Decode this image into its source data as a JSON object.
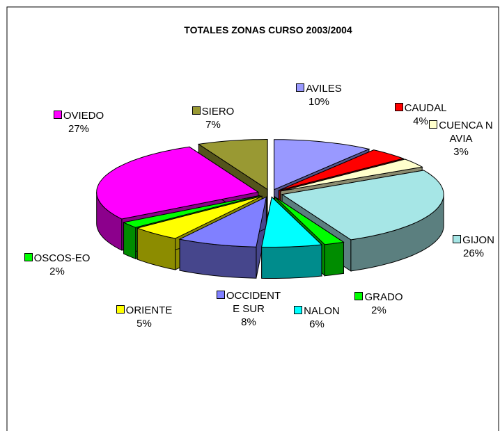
{
  "chart_data": {
    "type": "pie3d",
    "title": "TOTALES ZONAS CURSO 2003/2004",
    "categories": [
      "AVILES",
      "CAUDAL",
      "CUENCA NAVIA",
      "GIJON",
      "GRADO",
      "NALON",
      "OCCIDENTE SUR",
      "ORIENTE",
      "OSCOS-EO",
      "OVIEDO",
      "SIERO"
    ],
    "values": [
      10,
      4,
      3,
      26,
      2,
      6,
      8,
      5,
      2,
      27,
      7
    ],
    "value_labels": [
      "10%",
      "4%",
      "3%",
      "26%",
      "2%",
      "6%",
      "8%",
      "5%",
      "2%",
      "27%",
      "7%"
    ],
    "colors": [
      "#9999ff",
      "#ff0000",
      "#ffffcc",
      "#a6e6e6",
      "#00ff00",
      "#00ffff",
      "#8080ff",
      "#ffff00",
      "#00ff00",
      "#ff00ff",
      "#999933"
    ]
  }
}
